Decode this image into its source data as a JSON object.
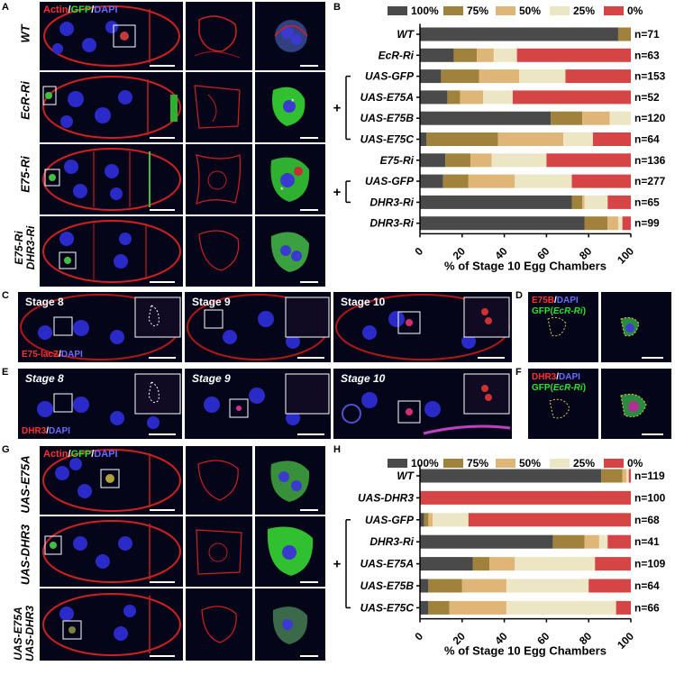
{
  "figure": {
    "panel_labels": [
      "A",
      "B",
      "C",
      "D",
      "E",
      "F",
      "G",
      "H"
    ],
    "A": {
      "stain": {
        "actin": "Actin",
        "sep1": "/",
        "gfp": "GFP",
        "sep2": "/",
        "dapi": "DAPI"
      },
      "rows": [
        "WT",
        "EcR-Ri",
        "E75-Ri",
        "E75-Ri\nDHR3-Ri"
      ]
    },
    "C": {
      "stages": [
        "Stage 8",
        "Stage 9",
        "Stage 10"
      ],
      "stain": {
        "a": "E75-lacZ",
        "sep": "/",
        "b": "DAPI"
      }
    },
    "D": {
      "stain": {
        "a": "E75B",
        "sep": "/",
        "b": "DAPI",
        "c": "GFP(",
        "d": "EcR-Ri",
        "e": ")"
      }
    },
    "E": {
      "stages": [
        "Stage 8",
        "Stage 9",
        "Stage 10"
      ],
      "stain": {
        "a": "DHR3",
        "sep": "/",
        "b": "DAPI"
      }
    },
    "F": {
      "stain": {
        "a": "DHR3",
        "sep": "/",
        "b": "DAPI",
        "c": "GFP(",
        "d": "EcR-Ri",
        "e": ")"
      }
    },
    "G": {
      "stain": {
        "actin": "Actin",
        "sep1": "/",
        "gfp": "GFP",
        "sep2": "/",
        "dapi": "DAPI"
      },
      "rows": [
        "UAS-E75A",
        "UAS-DHR3",
        "UAS-E75A\nUAS-DHR3"
      ]
    }
  },
  "chart_data": [
    {
      "panel": "B",
      "type": "bar",
      "orientation": "horizontal",
      "stacked": true,
      "legend_placement": "top",
      "colors": [
        "#4a4a4a",
        "#a0823c",
        "#e0b678",
        "#ede6c4",
        "#d64545"
      ],
      "series_names": [
        "100%",
        "75%",
        "50%",
        "25%",
        "0%"
      ],
      "categories": [
        "WT",
        "EcR-Ri",
        "UAS-GFP",
        "UAS-E75A",
        "UAS-E75B",
        "UAS-E75C",
        "E75-Ri",
        "UAS-GFP",
        "DHR3-Ri",
        "DHR3-Ri"
      ],
      "n_labels": [
        "n=71",
        "n=63",
        "n=153",
        "n=52",
        "n=120",
        "n=64",
        "n=136",
        "n=277",
        "n=65",
        "n=99"
      ],
      "values": [
        [
          94,
          6,
          0,
          0,
          0
        ],
        [
          16,
          11,
          8,
          11,
          54
        ],
        [
          10,
          18,
          19,
          22,
          31
        ],
        [
          13,
          6,
          11,
          14,
          56
        ],
        [
          62,
          15,
          13,
          10,
          0
        ],
        [
          3,
          34,
          31,
          14,
          18
        ],
        [
          12,
          12,
          10,
          26,
          40
        ],
        [
          11,
          12,
          22,
          27,
          28
        ],
        [
          72,
          5,
          1,
          11,
          11
        ],
        [
          78,
          11,
          5,
          2,
          4
        ]
      ],
      "groups": [
        {
          "symbol": "+",
          "rows": [
            2,
            5
          ]
        },
        {
          "symbol": "+",
          "rows": [
            7,
            8
          ]
        }
      ],
      "xticks": [
        0,
        20,
        40,
        60,
        80,
        100
      ],
      "xlim": [
        0,
        100
      ],
      "xlabel": "% of Stage 10 Egg Chambers"
    },
    {
      "panel": "H",
      "type": "bar",
      "orientation": "horizontal",
      "stacked": true,
      "legend_placement": "top",
      "colors": [
        "#4a4a4a",
        "#a0823c",
        "#e0b678",
        "#ede6c4",
        "#d64545"
      ],
      "series_names": [
        "100%",
        "75%",
        "50%",
        "25%",
        "0%"
      ],
      "categories": [
        "WT",
        "UAS-DHR3",
        "UAS-GFP",
        "DHR3-Ri",
        "UAS-E75A",
        "UAS-E75B",
        "UAS-E75C"
      ],
      "n_labels": [
        "n=119",
        "n=100",
        "n=68",
        "n=41",
        "n=109",
        "n=64",
        "n=66"
      ],
      "values": [
        [
          86,
          10,
          2,
          1,
          1
        ],
        [
          0,
          0,
          0,
          0,
          100
        ],
        [
          2,
          2,
          2,
          17,
          77
        ],
        [
          63,
          15,
          7,
          4,
          11
        ],
        [
          25,
          8,
          12,
          38,
          17
        ],
        [
          4,
          16,
          21,
          39,
          20
        ],
        [
          4,
          10,
          27,
          52,
          7
        ]
      ],
      "groups": [
        {
          "symbol": "+",
          "rows": [
            2,
            6
          ]
        }
      ],
      "xticks": [
        0,
        20,
        40,
        60,
        80,
        100
      ],
      "xlim": [
        0,
        100
      ],
      "xlabel": "% of Stage 10 Egg Chambers"
    }
  ]
}
